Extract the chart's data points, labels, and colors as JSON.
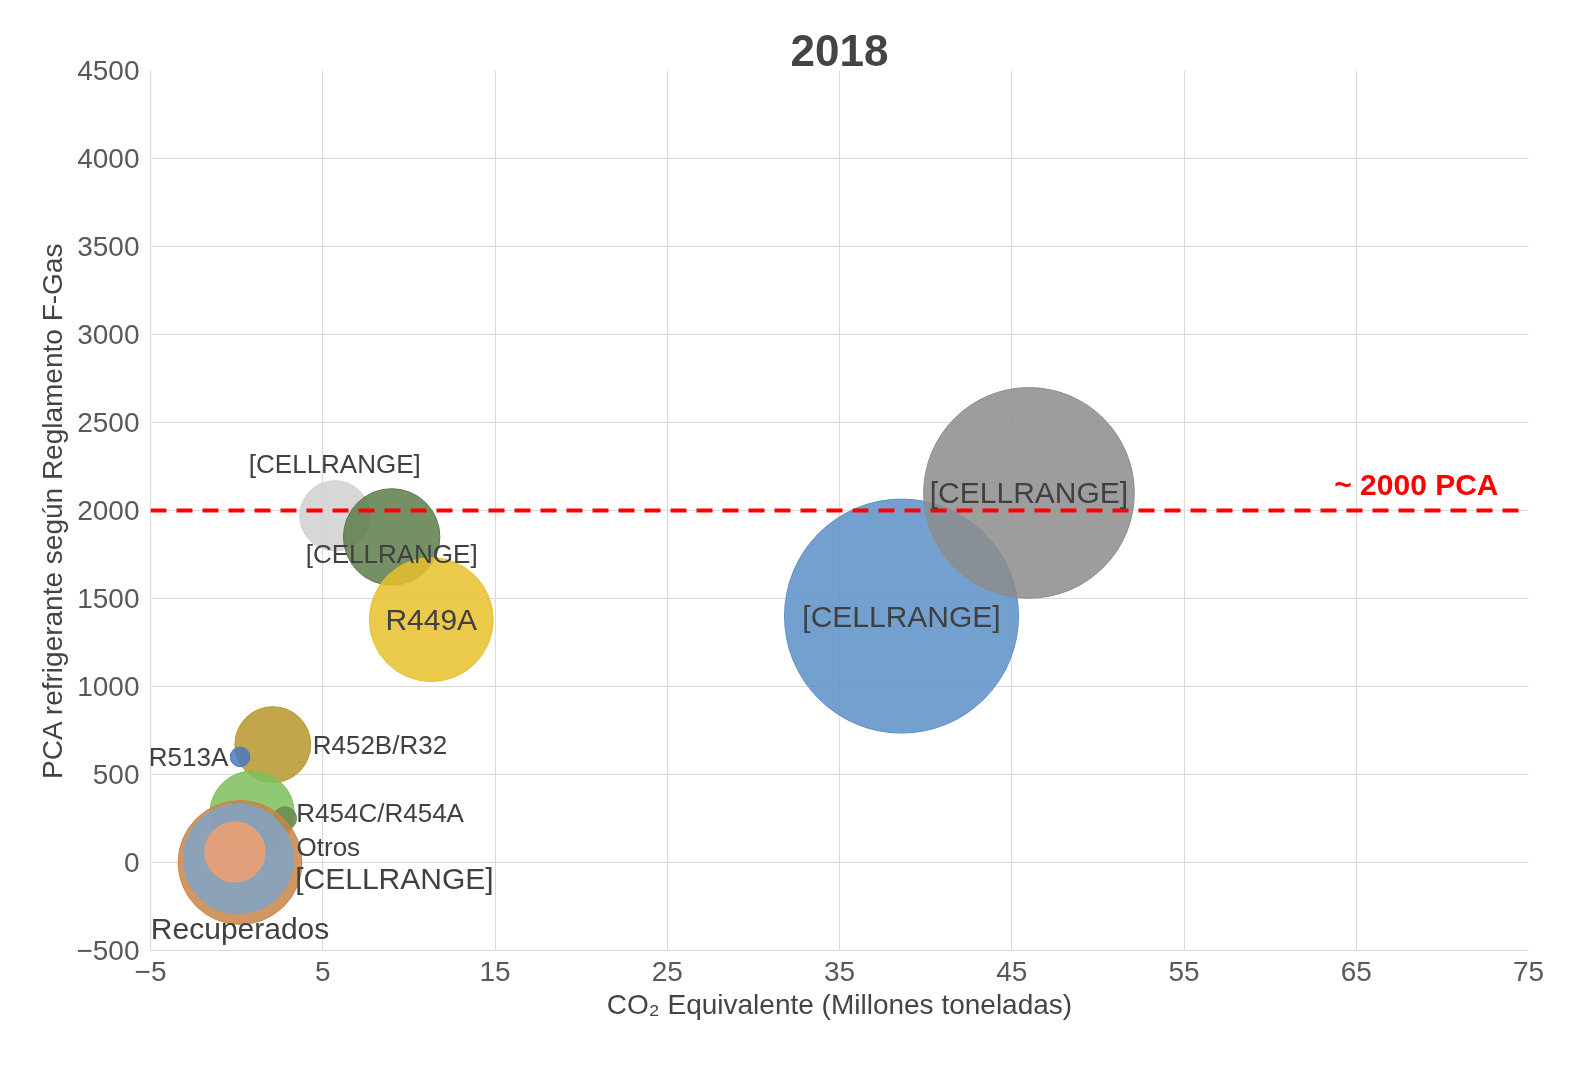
{
  "chart_data": {
    "type": "bubble",
    "title": "2018",
    "xlabel": "CO₂ Equivalente (Millones toneladas)",
    "ylabel": "PCA refrigerante según Reglamento F-Gas",
    "xlim": [
      -5,
      75
    ],
    "xticks": [
      -5,
      5,
      15,
      25,
      35,
      45,
      55,
      65,
      75
    ],
    "ylim": [
      -500,
      4500
    ],
    "yticks": [
      -500,
      0,
      500,
      1000,
      1500,
      2000,
      2500,
      3000,
      3500,
      4000,
      4500
    ],
    "grid": true,
    "legend": false,
    "ref_lines": [
      {
        "axis": "y",
        "value": 2000,
        "label": "~ 2000 PCA",
        "color": "#ff0000",
        "line_style": "dashed"
      }
    ],
    "series": [
      {
        "name": "[CELLRANGE]",
        "color": "#5b8fc7",
        "x": [
          38.6
        ],
        "values": [
          1400
        ],
        "sizes": [
          1
        ]
      },
      {
        "name": "[CELLRANGE]",
        "color": "#8c8c8c",
        "x": [
          46
        ],
        "values": [
          2100
        ],
        "sizes": [
          0.81
        ]
      },
      {
        "name": "[CELLRANGE]",
        "color": "#d0d0d0",
        "x": [
          5.7
        ],
        "values": [
          1970
        ],
        "sizes": [
          0.09
        ]
      },
      {
        "name": "[CELLRANGE]",
        "color": "#5e7d4a",
        "x": [
          9
        ],
        "values": [
          1850
        ],
        "sizes": [
          0.17
        ]
      },
      {
        "name": "R449A",
        "color": "#e8c02c",
        "x": [
          11.3
        ],
        "values": [
          1380
        ],
        "sizes": [
          0.28
        ]
      },
      {
        "name": "R452B/R32",
        "color": "#b8962c",
        "x": [
          2.1
        ],
        "values": [
          670
        ],
        "sizes": [
          0.105
        ]
      },
      {
        "name": "R513A",
        "color": "#4a78c2",
        "x": [
          0.2
        ],
        "values": [
          600
        ],
        "sizes": [
          0.007
        ]
      },
      {
        "name": "R454C/R454A",
        "color": "#7dc05a",
        "x": [
          0.9
        ],
        "values": [
          280
        ],
        "sizes": [
          0.13
        ]
      },
      {
        "name": "Otros",
        "color": "#6a8a50",
        "x": [
          2.8
        ],
        "values": [
          250
        ],
        "sizes": [
          0.01
        ]
      },
      {
        "name": "Recuperados",
        "color": "#c8854a",
        "x": [
          0.2
        ],
        "values": [
          0
        ],
        "sizes": [
          0.28
        ]
      },
      {
        "name": "[CELLRANGE]",
        "color": "#7fa3c8",
        "x": [
          0.1
        ],
        "values": [
          20
        ],
        "sizes": [
          0.22
        ]
      },
      {
        "color": "#f0a070",
        "x": [
          -0.1
        ],
        "values": [
          60
        ],
        "sizes": [
          0.066
        ]
      }
    ]
  }
}
